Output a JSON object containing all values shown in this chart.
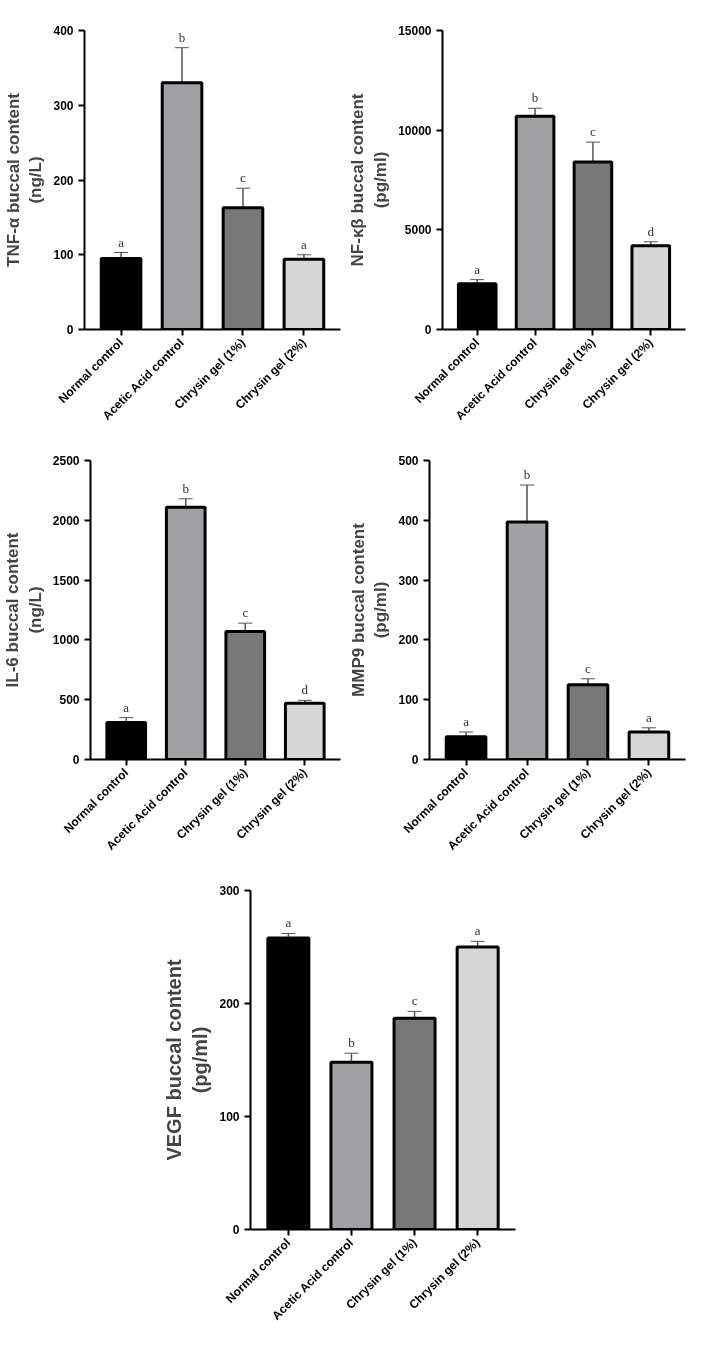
{
  "chart_data": [
    {
      "type": "bar",
      "ylabel": "TNF-α buccal content\n(ng/L)",
      "categories": [
        "Normal control",
        "Acetic Acid control",
        "Chrysin gel (1%)",
        "Chrysin gel (2%)"
      ],
      "values": [
        95,
        330,
        163,
        94
      ],
      "colors": [
        "#000000",
        "#a0a0a5",
        "#787878",
        "#d6d6d6"
      ],
      "errors": [
        [
          95,
          103
        ],
        [
          330,
          377
        ],
        [
          163,
          189
        ],
        [
          94,
          100
        ]
      ],
      "ylim": [
        0,
        400
      ],
      "yticks": [
        0,
        100,
        200,
        300,
        400
      ],
      "grid": false,
      "annotations": [
        {
          "text": "a",
          "x": "Normal control",
          "y": 103
        },
        {
          "text": "b",
          "x": "Acetic Acid control",
          "y": 377
        },
        {
          "text": "c",
          "x": "Chrysin gel (1%)",
          "y": 189
        },
        {
          "text": "a",
          "x": "Chrysin gel (2%)",
          "y": 100
        }
      ]
    },
    {
      "type": "bar",
      "ylabel": "NF-κβ buccal content\n(pg/ml)",
      "categories": [
        "Normal control",
        "Acetic Acid control",
        "Chrysin gel (1%)",
        "Chrysin gel (2%)"
      ],
      "values": [
        2300,
        10700,
        8400,
        4200
      ],
      "colors": [
        "#000000",
        "#a0a0a5",
        "#787878",
        "#d6d6d6"
      ],
      "errors": [
        [
          2300,
          2500
        ],
        [
          10700,
          11100
        ],
        [
          8400,
          9400
        ],
        [
          4200,
          4400
        ]
      ],
      "ylim": [
        0,
        15000
      ],
      "yticks": [
        0,
        5000,
        10000,
        15000
      ],
      "grid": false,
      "annotations": [
        {
          "text": "a",
          "x": "Normal control",
          "y": 2500
        },
        {
          "text": "b",
          "x": "Acetic Acid control",
          "y": 11100
        },
        {
          "text": "c",
          "x": "Chrysin gel (1%)",
          "y": 9400
        },
        {
          "text": "d",
          "x": "Chrysin gel (2%)",
          "y": 4400
        }
      ]
    },
    {
      "type": "bar",
      "ylabel": "IL-6 buccal content\n(ng/L)",
      "categories": [
        "Normal control",
        "Acetic Acid control",
        "Chrysin gel (1%)",
        "Chrysin gel (2%)"
      ],
      "values": [
        310,
        2110,
        1070,
        470
      ],
      "colors": [
        "#000000",
        "#a0a0a5",
        "#787878",
        "#d6d6d6"
      ],
      "errors": [
        [
          310,
          350
        ],
        [
          2110,
          2180
        ],
        [
          1070,
          1140
        ],
        [
          470,
          495
        ]
      ],
      "ylim": [
        0,
        2500
      ],
      "yticks": [
        0,
        500,
        1000,
        1500,
        2000,
        2500
      ],
      "grid": false,
      "annotations": [
        {
          "text": "a",
          "x": "Normal control",
          "y": 350
        },
        {
          "text": "b",
          "x": "Acetic Acid control",
          "y": 2180
        },
        {
          "text": "c",
          "x": "Chrysin gel (1%)",
          "y": 1140
        },
        {
          "text": "d",
          "x": "Chrysin gel (2%)",
          "y": 495
        }
      ]
    },
    {
      "type": "bar",
      "ylabel": "MMP9 buccal content\n(pg/ml)",
      "categories": [
        "Normal control",
        "Acetic Acid control",
        "Chrysin gel (1%)",
        "Chrysin gel (2%)"
      ],
      "values": [
        38,
        397,
        125,
        46
      ],
      "colors": [
        "#000000",
        "#a0a0a5",
        "#787878",
        "#d6d6d6"
      ],
      "errors": [
        [
          38,
          46
        ],
        [
          397,
          459
        ],
        [
          125,
          135
        ],
        [
          46,
          53
        ]
      ],
      "ylim": [
        0,
        500
      ],
      "yticks": [
        0,
        100,
        200,
        300,
        400,
        500
      ],
      "grid": false,
      "annotations": [
        {
          "text": "a",
          "x": "Normal control",
          "y": 46
        },
        {
          "text": "b",
          "x": "Acetic Acid control",
          "y": 459
        },
        {
          "text": "c",
          "x": "Chrysin gel (1%)",
          "y": 135
        },
        {
          "text": "a",
          "x": "Chrysin gel (2%)",
          "y": 53
        }
      ]
    },
    {
      "type": "bar",
      "ylabel": "VEGF buccal content\n(pg/ml)",
      "categories": [
        "Normal control",
        "Acetic Acid control",
        "Chrysin gel (1%)",
        "Chrysin gel (2%)"
      ],
      "values": [
        258,
        148,
        187,
        250
      ],
      "colors": [
        "#000000",
        "#a0a0a5",
        "#787878",
        "#d6d6d6"
      ],
      "errors": [
        [
          258,
          262
        ],
        [
          148,
          156
        ],
        [
          187,
          193
        ],
        [
          250,
          255
        ]
      ],
      "ylim": [
        0,
        300
      ],
      "yticks": [
        0,
        100,
        200,
        300
      ],
      "grid": false,
      "annotations": [
        {
          "text": "a",
          "x": "Normal control",
          "y": 262
        },
        {
          "text": "b",
          "x": "Acetic Acid control",
          "y": 156
        },
        {
          "text": "c",
          "x": "Chrysin gel (1%)",
          "y": 193
        },
        {
          "text": "a",
          "x": "Chrysin gel (2%)",
          "y": 255
        }
      ]
    }
  ]
}
